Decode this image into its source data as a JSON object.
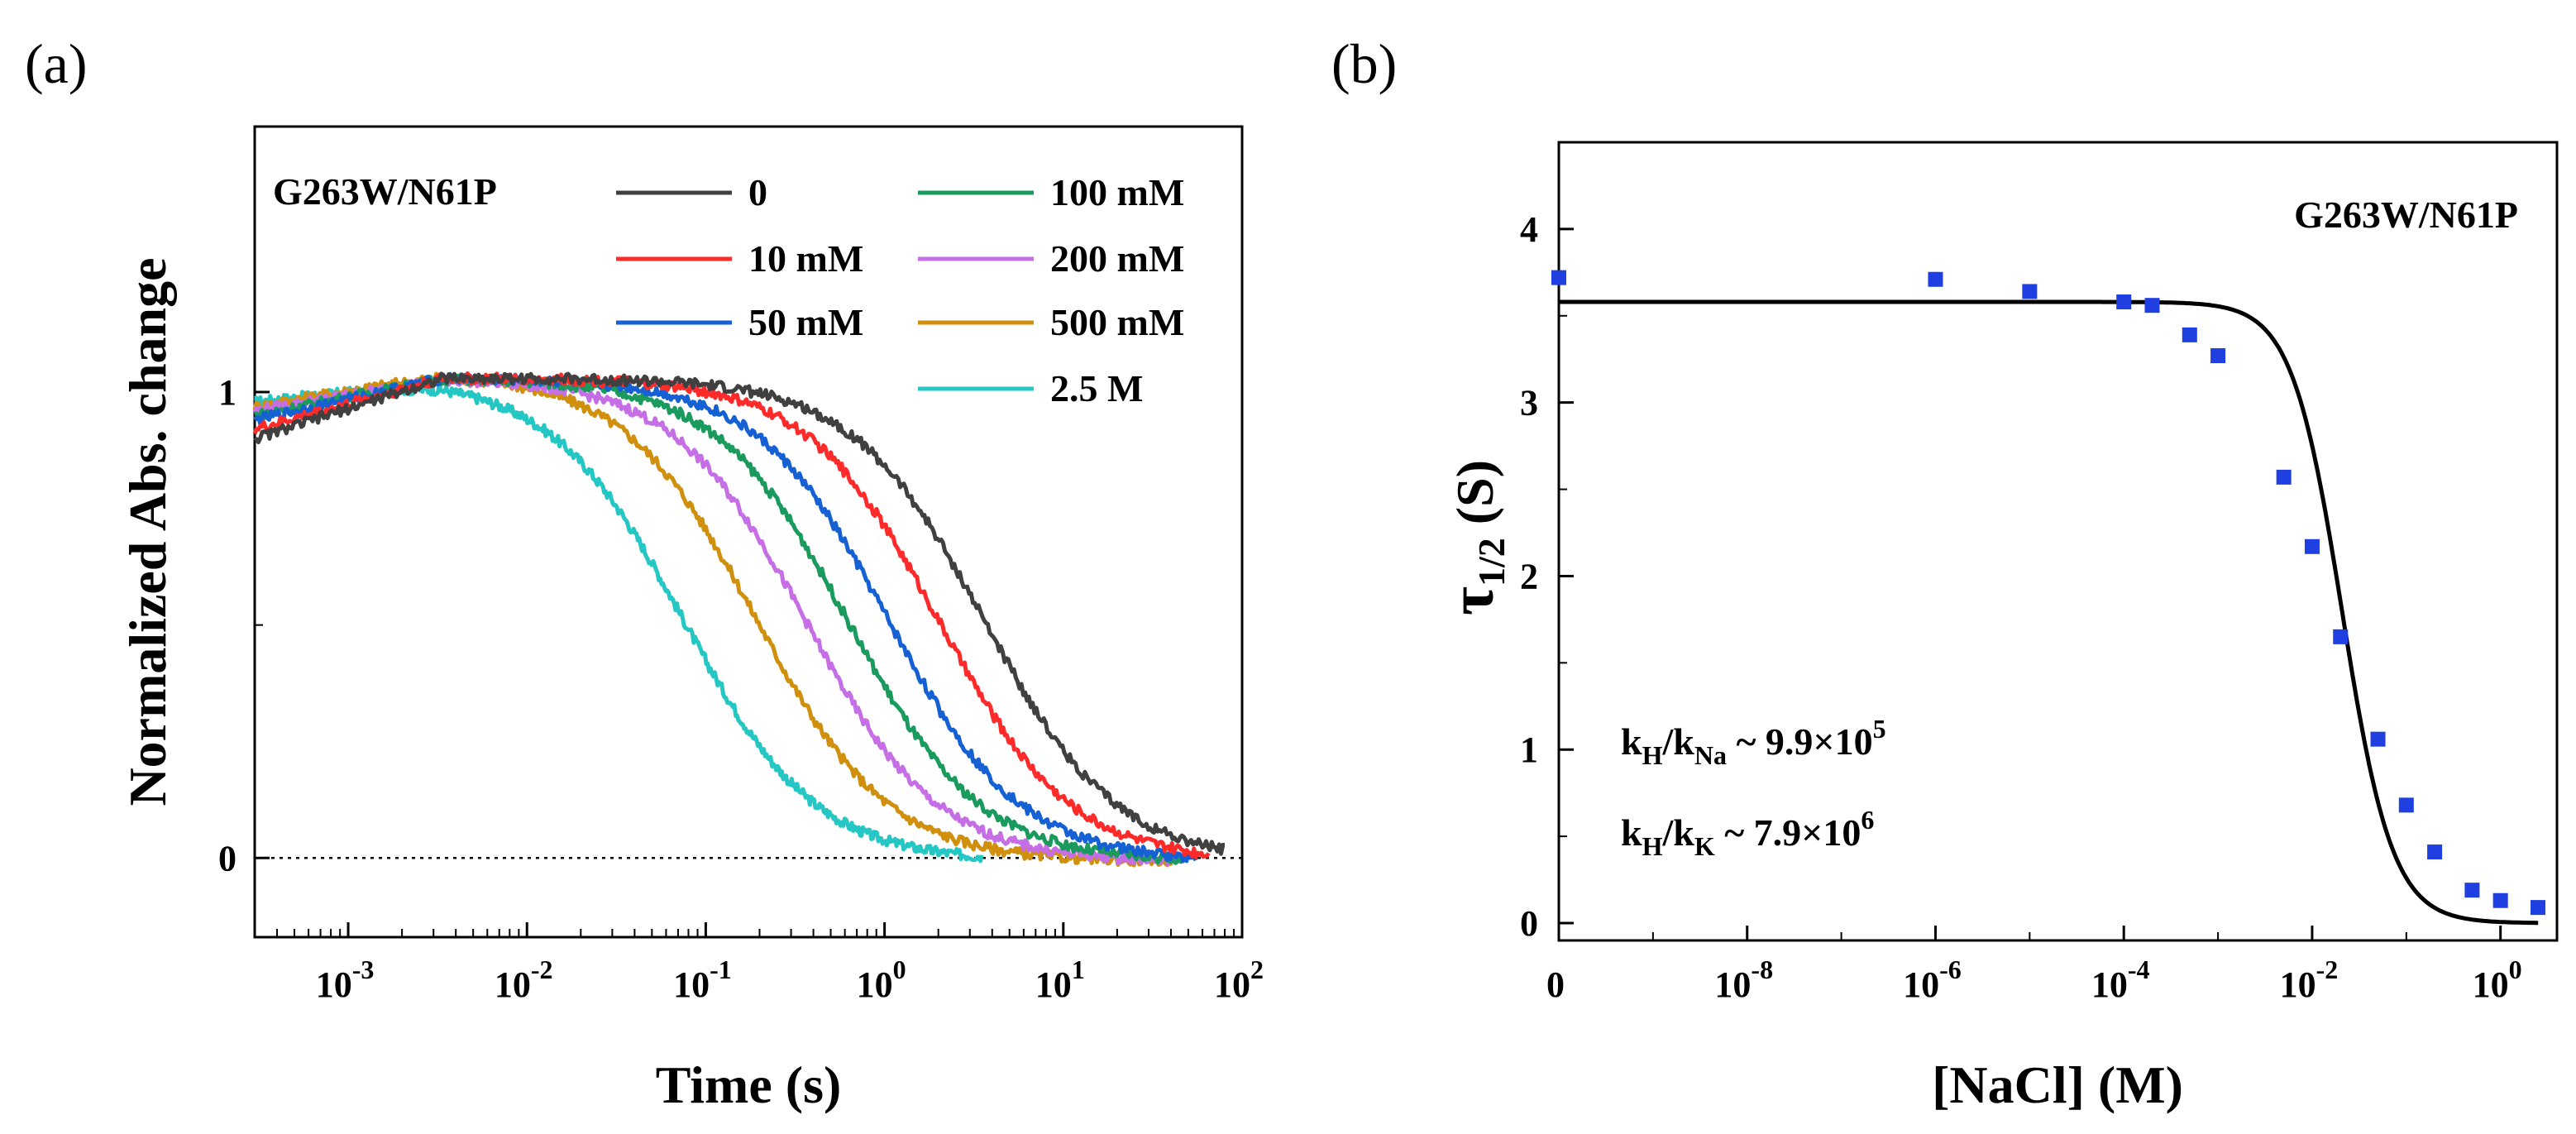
{
  "panels": {
    "a": {
      "label": "(a)"
    },
    "b": {
      "label": "(b)"
    }
  },
  "chart_data": [
    {
      "type": "line",
      "panel": "(a)",
      "xlabel": "Time (s)",
      "ylabel": "Normalized Abs. change",
      "x_scale": "log",
      "xlim": [
        0.0003,
        100
      ],
      "ylim": [
        -0.17,
        1.57
      ],
      "x_ticks": [
        0.001,
        0.01,
        0.1,
        1,
        10,
        100
      ],
      "x_tick_labels": [
        {
          "base": "10",
          "exp": "-3"
        },
        {
          "base": "10",
          "exp": "-2"
        },
        {
          "base": "10",
          "exp": "-1"
        },
        {
          "base": "10",
          "exp": "0"
        },
        {
          "base": "10",
          "exp": "1"
        },
        {
          "base": "10",
          "exp": "2"
        }
      ],
      "y_ticks": [
        0,
        1
      ],
      "y_tick_labels": [
        "0",
        "1"
      ],
      "annotation": "G263W/N61P",
      "reference_line": {
        "y": 0,
        "style": "dotted"
      },
      "legend_placement": "top-right",
      "series": [
        {
          "name": "0",
          "color": "#404040",
          "t_half": 3.6,
          "width": 1.18,
          "start": 0.9,
          "peak": 1.03,
          "t_end": 80
        },
        {
          "name": "10 mM",
          "color": "#ff2a2a",
          "t_half": 2.0,
          "width": 1.18,
          "start": 0.92,
          "peak": 1.03,
          "t_end": 65
        },
        {
          "name": "50 mM",
          "color": "#1561d4",
          "t_half": 1.05,
          "width": 1.18,
          "start": 0.94,
          "peak": 1.03,
          "t_end": 55
        },
        {
          "name": "100 mM",
          "color": "#1a9a5c",
          "t_half": 0.62,
          "width": 1.18,
          "start": 0.95,
          "peak": 1.03,
          "t_end": 50
        },
        {
          "name": "200 mM",
          "color": "#c66ee6",
          "t_half": 0.36,
          "width": 1.18,
          "start": 0.96,
          "peak": 1.03,
          "t_end": 45
        },
        {
          "name": "500 mM",
          "color": "#d18f0e",
          "t_half": 0.19,
          "width": 1.18,
          "start": 0.97,
          "peak": 1.04,
          "t_end": 40
        },
        {
          "name": "2.5 M",
          "color": "#25c7c4",
          "t_half": 0.075,
          "width": 1.18,
          "start": 0.98,
          "peak": 1.03,
          "t_end": 3.5
        }
      ]
    },
    {
      "type": "scatter",
      "panel": "(b)",
      "xlabel": "[NaCl] (M)",
      "ylabel": {
        "main": "τ",
        "sub": "1/2",
        "rest": " (S)"
      },
      "x_scale": "log (0 shown at left edge)",
      "xlim_log10": [
        -10,
        0.6
      ],
      "ylim": [
        -0.1,
        4.5
      ],
      "x_ticks_log10": [
        -10,
        -8,
        -6,
        -4,
        -2,
        0
      ],
      "x_tick_labels": [
        {
          "base": "0",
          "exp": ""
        },
        {
          "base": "10",
          "exp": "-8"
        },
        {
          "base": "10",
          "exp": "-6"
        },
        {
          "base": "10",
          "exp": "-4"
        },
        {
          "base": "10",
          "exp": "-2"
        },
        {
          "base": "10",
          "exp": "0"
        }
      ],
      "y_ticks": [
        0,
        1,
        2,
        3,
        4
      ],
      "y_tick_labels": [
        "0",
        "1",
        "2",
        "3",
        "4"
      ],
      "annotation": "G263W/N61P",
      "text_annotations": [
        {
          "pre": "k",
          "sub1": "H",
          "mid": "/k",
          "sub2": "Na",
          "post": " ~ 9.9×10",
          "sup": "5"
        },
        {
          "pre": "k",
          "sub1": "H",
          "mid": "/k",
          "sub2": "K",
          "post": " ~ 7.9×10",
          "sup": "6"
        }
      ],
      "points": {
        "color": "#1f3fe0",
        "x": [
          0,
          1e-06,
          1e-05,
          0.0001,
          0.0002,
          0.0005,
          0.001,
          0.005,
          0.01,
          0.02,
          0.05,
          0.1,
          0.2,
          0.5,
          1.0,
          2.5
        ],
        "y": [
          3.72,
          3.71,
          3.64,
          3.58,
          3.56,
          3.39,
          3.27,
          2.57,
          2.17,
          1.65,
          1.06,
          0.68,
          0.41,
          0.19,
          0.13,
          0.09
        ]
      },
      "fit": {
        "color": "#000000",
        "top": 3.58,
        "log10_midpoint": -1.68,
        "slope": 1.05
      }
    }
  ]
}
